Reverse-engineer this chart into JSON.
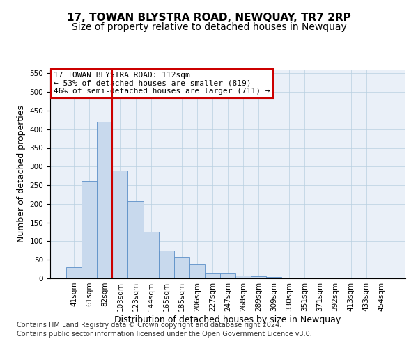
{
  "title": "17, TOWAN BLYSTRA ROAD, NEWQUAY, TR7 2RP",
  "subtitle": "Size of property relative to detached houses in Newquay",
  "xlabel": "Distribution of detached houses by size in Newquay",
  "ylabel": "Number of detached properties",
  "categories": [
    "41sqm",
    "61sqm",
    "82sqm",
    "103sqm",
    "123sqm",
    "144sqm",
    "165sqm",
    "185sqm",
    "206sqm",
    "227sqm",
    "247sqm",
    "268sqm",
    "289sqm",
    "309sqm",
    "330sqm",
    "351sqm",
    "371sqm",
    "392sqm",
    "413sqm",
    "433sqm",
    "454sqm"
  ],
  "values": [
    30,
    262,
    420,
    290,
    207,
    126,
    75,
    58,
    38,
    15,
    15,
    8,
    5,
    3,
    2,
    2,
    1,
    1,
    1,
    1,
    1
  ],
  "bar_color": "#c8d9ed",
  "bar_edge_color": "#5b8fc7",
  "vline_index": 3,
  "vline_color": "#cc0000",
  "annotation_text": "17 TOWAN BLYSTRA ROAD: 112sqm\n← 53% of detached houses are smaller (819)\n46% of semi-detached houses are larger (711) →",
  "annotation_box_color": "#ffffff",
  "annotation_box_edge_color": "#cc0000",
  "ylim": [
    0,
    560
  ],
  "yticks": [
    0,
    50,
    100,
    150,
    200,
    250,
    300,
    350,
    400,
    450,
    500,
    550
  ],
  "background_color": "#eaf0f8",
  "footer1": "Contains HM Land Registry data © Crown copyright and database right 2024.",
  "footer2": "Contains public sector information licensed under the Open Government Licence v3.0.",
  "title_fontsize": 11,
  "subtitle_fontsize": 10,
  "xlabel_fontsize": 9,
  "ylabel_fontsize": 9,
  "tick_fontsize": 7.5,
  "annotation_fontsize": 8,
  "footer_fontsize": 7
}
